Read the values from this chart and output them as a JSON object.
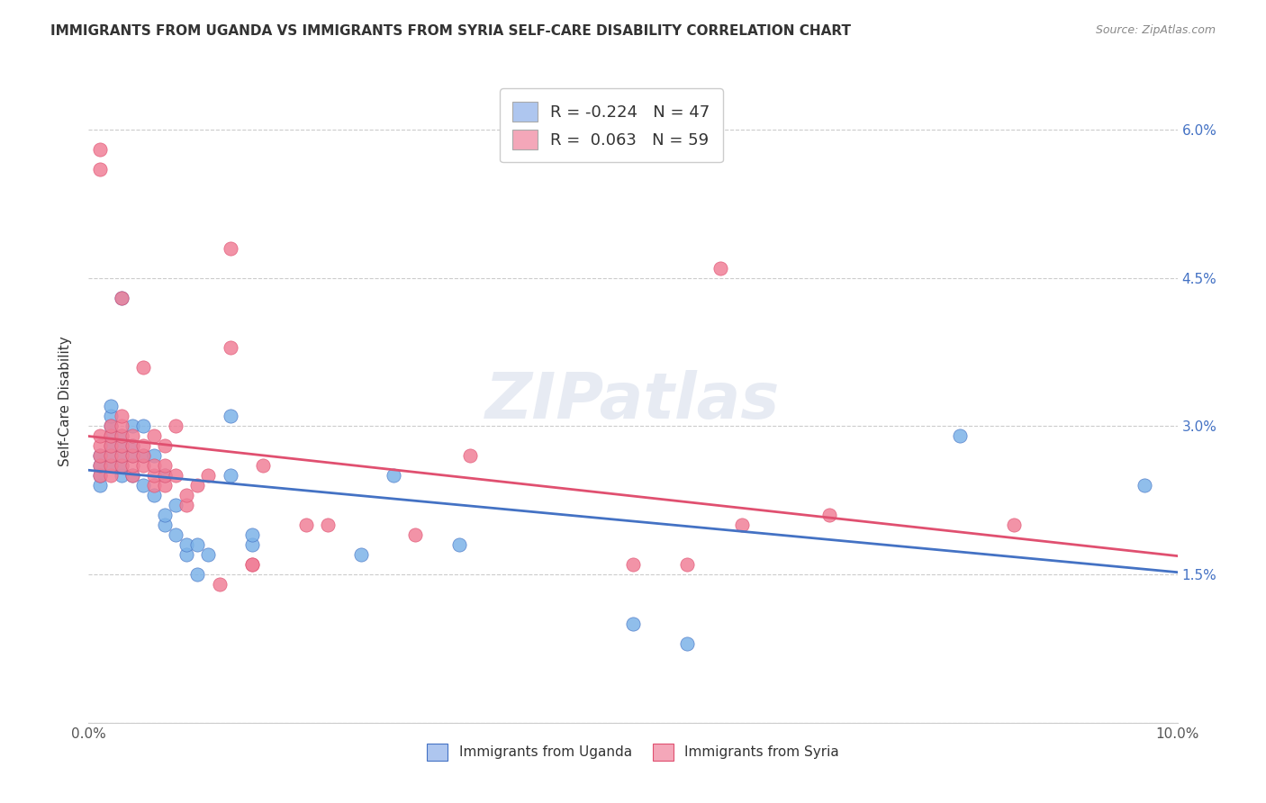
{
  "title": "IMMIGRANTS FROM UGANDA VS IMMIGRANTS FROM SYRIA SELF-CARE DISABILITY CORRELATION CHART",
  "source": "Source: ZipAtlas.com",
  "xlabel_bottom": "",
  "ylabel": "Self-Care Disability",
  "x_min": 0.0,
  "x_max": 0.1,
  "y_min": 0.0,
  "y_max": 0.065,
  "x_ticks": [
    0.0,
    0.02,
    0.04,
    0.06,
    0.08,
    0.1
  ],
  "x_tick_labels": [
    "0.0%",
    "",
    "",
    "",
    "",
    "10.0%"
  ],
  "y_ticks": [
    0.0,
    0.015,
    0.03,
    0.045,
    0.06
  ],
  "y_tick_labels": [
    "",
    "1.5%",
    "3.0%",
    "4.5%",
    "6.0%"
  ],
  "legend_uganda_label": "Immigrants from Uganda",
  "legend_syria_label": "Immigrants from Syria",
  "legend_uganda_color": "#aec6ef",
  "legend_syria_color": "#f4a7b9",
  "uganda_dot_color": "#7db3e8",
  "syria_dot_color": "#f08098",
  "uganda_line_color": "#4472c4",
  "syria_line_color": "#e05070",
  "watermark": "ZIPatlas",
  "R_uganda": -0.224,
  "N_uganda": 47,
  "R_syria": 0.063,
  "N_syria": 59,
  "uganda_x": [
    0.001,
    0.001,
    0.001,
    0.001,
    0.002,
    0.002,
    0.002,
    0.002,
    0.002,
    0.002,
    0.002,
    0.003,
    0.003,
    0.003,
    0.003,
    0.003,
    0.003,
    0.004,
    0.004,
    0.004,
    0.004,
    0.005,
    0.005,
    0.005,
    0.006,
    0.006,
    0.007,
    0.007,
    0.007,
    0.008,
    0.008,
    0.009,
    0.009,
    0.01,
    0.01,
    0.011,
    0.013,
    0.013,
    0.015,
    0.015,
    0.025,
    0.028,
    0.034,
    0.05,
    0.055,
    0.08,
    0.097
  ],
  "uganda_y": [
    0.024,
    0.025,
    0.026,
    0.027,
    0.026,
    0.027,
    0.028,
    0.029,
    0.03,
    0.031,
    0.032,
    0.025,
    0.026,
    0.027,
    0.028,
    0.029,
    0.043,
    0.025,
    0.027,
    0.028,
    0.03,
    0.024,
    0.027,
    0.03,
    0.023,
    0.027,
    0.02,
    0.021,
    0.025,
    0.019,
    0.022,
    0.017,
    0.018,
    0.015,
    0.018,
    0.017,
    0.031,
    0.025,
    0.018,
    0.019,
    0.017,
    0.025,
    0.018,
    0.01,
    0.008,
    0.029,
    0.024
  ],
  "syria_x": [
    0.001,
    0.001,
    0.001,
    0.001,
    0.001,
    0.001,
    0.001,
    0.002,
    0.002,
    0.002,
    0.002,
    0.002,
    0.002,
    0.003,
    0.003,
    0.003,
    0.003,
    0.003,
    0.003,
    0.003,
    0.004,
    0.004,
    0.004,
    0.004,
    0.004,
    0.005,
    0.005,
    0.005,
    0.005,
    0.006,
    0.006,
    0.006,
    0.006,
    0.007,
    0.007,
    0.007,
    0.007,
    0.008,
    0.008,
    0.009,
    0.009,
    0.01,
    0.011,
    0.012,
    0.013,
    0.013,
    0.015,
    0.015,
    0.016,
    0.02,
    0.022,
    0.03,
    0.035,
    0.05,
    0.055,
    0.058,
    0.06,
    0.068,
    0.085
  ],
  "syria_y": [
    0.056,
    0.058,
    0.025,
    0.026,
    0.027,
    0.028,
    0.029,
    0.025,
    0.026,
    0.027,
    0.028,
    0.029,
    0.03,
    0.026,
    0.027,
    0.028,
    0.029,
    0.03,
    0.031,
    0.043,
    0.025,
    0.026,
    0.027,
    0.028,
    0.029,
    0.026,
    0.027,
    0.028,
    0.036,
    0.024,
    0.025,
    0.026,
    0.029,
    0.024,
    0.025,
    0.026,
    0.028,
    0.025,
    0.03,
    0.022,
    0.023,
    0.024,
    0.025,
    0.014,
    0.048,
    0.038,
    0.016,
    0.016,
    0.026,
    0.02,
    0.02,
    0.019,
    0.027,
    0.016,
    0.016,
    0.046,
    0.02,
    0.021,
    0.02
  ]
}
